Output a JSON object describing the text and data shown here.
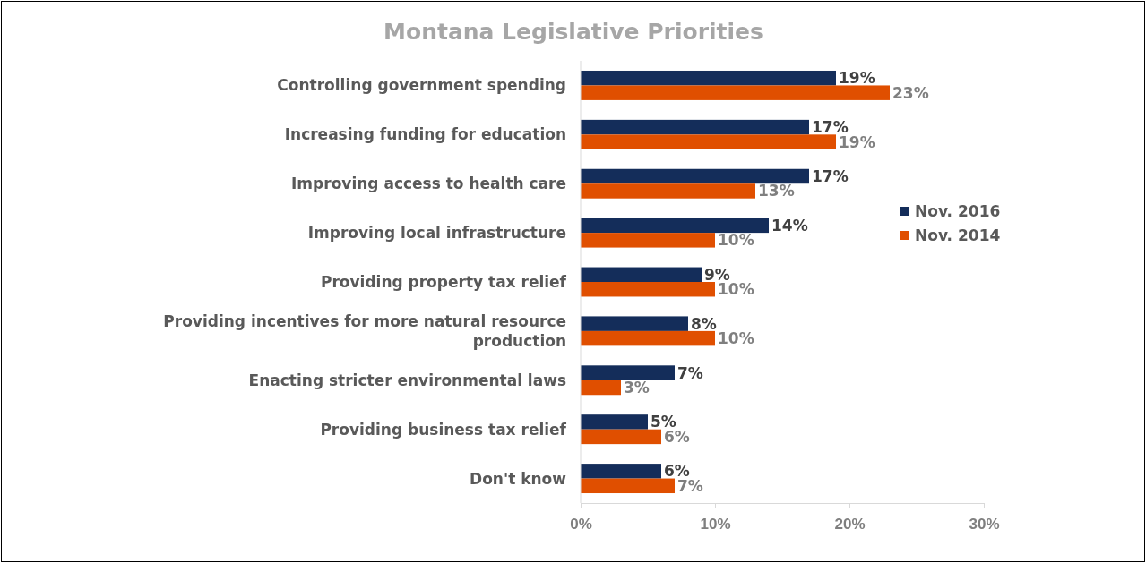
{
  "chart_data": {
    "type": "bar",
    "orientation": "horizontal",
    "title": "Montana Legislative Priorities",
    "categories": [
      "Controlling government spending",
      "Increasing funding for education",
      "Improving access to health care",
      "Improving local infrastructure",
      "Providing property tax relief",
      "Providing incentives for more natural resource production",
      "Enacting stricter environmental laws",
      "Providing business tax relief",
      "Don't know"
    ],
    "series": [
      {
        "name": "Nov. 2016",
        "color": "#142d5a",
        "values": [
          19,
          17,
          17,
          14,
          9,
          8,
          7,
          5,
          6
        ],
        "value_labels": [
          "19%",
          "17%",
          "17%",
          "14%",
          "9%",
          "8%",
          "7%",
          "5%",
          "6%"
        ]
      },
      {
        "name": "Nov. 2014",
        "color": "#e04f00",
        "values": [
          23,
          19,
          13,
          10,
          10,
          10,
          3,
          6,
          7
        ],
        "value_labels": [
          "23%",
          "19%",
          "13%",
          "10%",
          "10%",
          "10%",
          "3%",
          "6%",
          "7%"
        ]
      }
    ],
    "xlim": [
      0,
      30
    ],
    "xticks": [
      {
        "value": 0,
        "label": "0%"
      },
      {
        "value": 10,
        "label": "10%"
      },
      {
        "value": 20,
        "label": "20%"
      },
      {
        "value": 30,
        "label": "30%"
      }
    ],
    "grid": false,
    "legend": "right"
  }
}
